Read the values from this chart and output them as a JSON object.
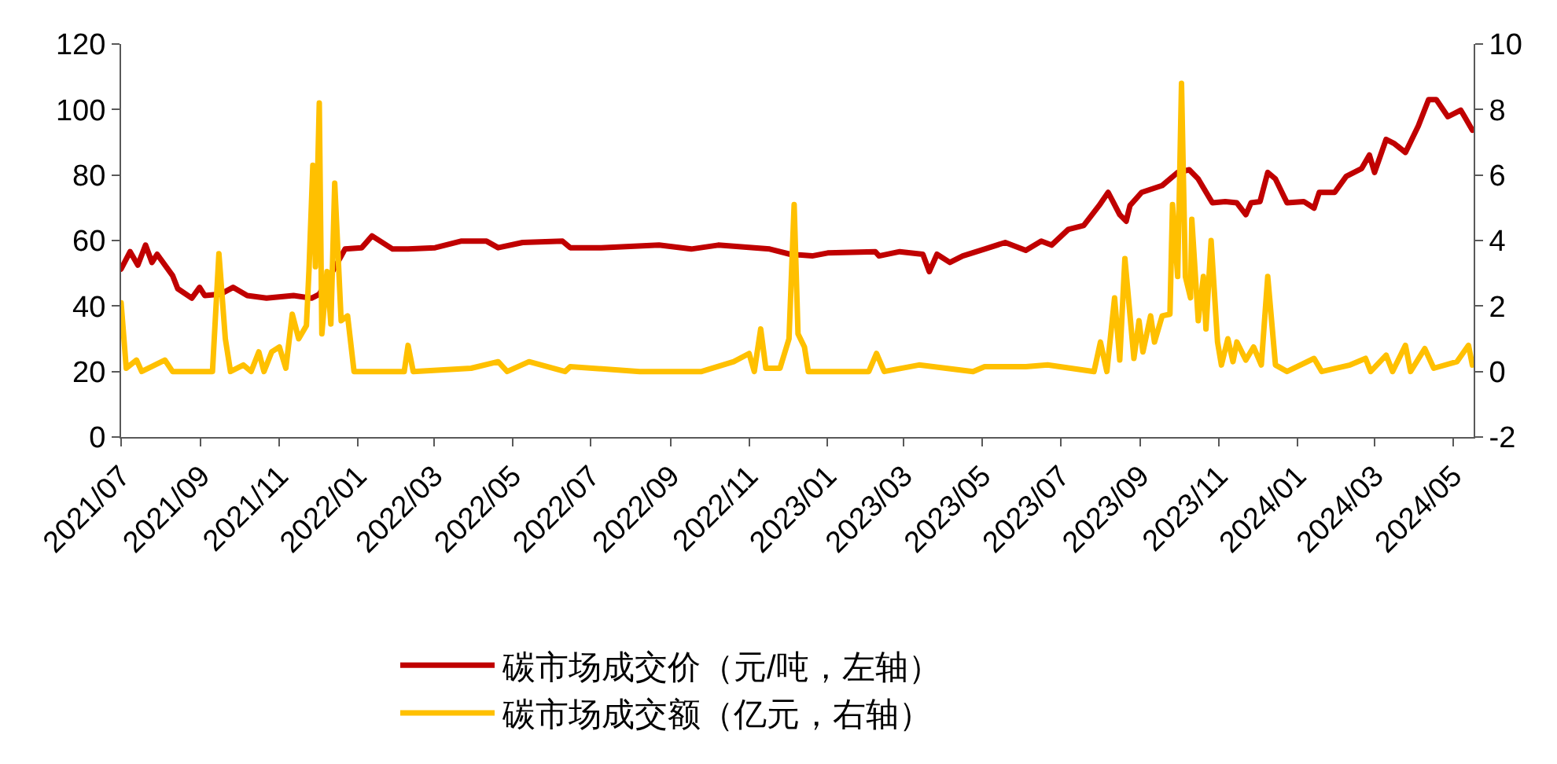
{
  "chart_data": {
    "type": "line",
    "legend": "bottom",
    "grid": false,
    "marker": "none",
    "line_style": "solid",
    "xlim": [
      "2021-07-01",
      "2024-05-17"
    ],
    "xticks": [
      {
        "value": "2021-07-01",
        "label": "2021/07"
      },
      {
        "value": "2021-09-01",
        "label": "2021/09"
      },
      {
        "value": "2021-11-01",
        "label": "2021/11"
      },
      {
        "value": "2022-01-01",
        "label": "2022/01"
      },
      {
        "value": "2022-03-01",
        "label": "2022/03"
      },
      {
        "value": "2022-05-01",
        "label": "2022/05"
      },
      {
        "value": "2022-07-01",
        "label": "2022/07"
      },
      {
        "value": "2022-09-01",
        "label": "2022/09"
      },
      {
        "value": "2022-11-01",
        "label": "2022/11"
      },
      {
        "value": "2023-01-01",
        "label": "2023/01"
      },
      {
        "value": "2023-03-01",
        "label": "2023/03"
      },
      {
        "value": "2023-05-01",
        "label": "2023/05"
      },
      {
        "value": "2023-07-01",
        "label": "2023/07"
      },
      {
        "value": "2023-09-01",
        "label": "2023/09"
      },
      {
        "value": "2023-11-01",
        "label": "2023/11"
      },
      {
        "value": "2024-01-01",
        "label": "2024/01"
      },
      {
        "value": "2024-03-01",
        "label": "2024/03"
      },
      {
        "value": "2024-05-01",
        "label": "2024/05"
      }
    ],
    "ylim": [
      0,
      120
    ],
    "yticks": [
      0,
      20,
      40,
      60,
      80,
      100,
      120
    ],
    "y2lim": [
      -2,
      10
    ],
    "y2ticks": [
      -2,
      0,
      2,
      4,
      6,
      8,
      10
    ],
    "series": [
      {
        "name": "碳市场成交价（元/吨，左轴）",
        "color": "#c00000",
        "x": [
          "2021-07-01",
          "2021-07-08",
          "2021-07-14",
          "2021-07-20",
          "2021-07-25",
          "2021-07-29",
          "2021-08-10",
          "2021-08-14",
          "2021-08-25",
          "2021-08-31",
          "2021-09-04",
          "2021-09-16",
          "2021-09-26",
          "2021-10-07",
          "2021-10-22",
          "2021-11-12",
          "2021-11-26",
          "2021-12-02",
          "2021-12-14",
          "2021-12-22",
          "2022-01-04",
          "2022-01-12",
          "2022-01-28",
          "2022-02-09",
          "2022-03-02",
          "2022-03-22",
          "2022-04-11",
          "2022-04-20",
          "2022-05-09",
          "2022-06-09",
          "2022-06-15",
          "2022-07-09",
          "2022-08-23",
          "2022-09-17",
          "2022-10-08",
          "2022-11-17",
          "2022-12-03",
          "2022-12-20",
          "2023-01-01",
          "2023-02-07",
          "2023-02-10",
          "2023-02-26",
          "2023-03-16",
          "2023-03-21",
          "2023-03-27",
          "2023-04-06",
          "2023-04-16",
          "2023-05-03",
          "2023-05-19",
          "2023-06-04",
          "2023-06-16",
          "2023-06-24",
          "2023-07-07",
          "2023-07-19",
          "2023-07-31",
          "2023-08-07",
          "2023-08-16",
          "2023-08-21",
          "2023-08-24",
          "2023-09-02",
          "2023-09-18",
          "2023-09-30",
          "2023-10-09",
          "2023-10-16",
          "2023-10-27",
          "2023-11-06",
          "2023-11-15",
          "2023-11-22",
          "2023-11-26",
          "2023-12-03",
          "2023-12-09",
          "2023-12-15",
          "2023-12-24",
          "2024-01-06",
          "2024-01-14",
          "2024-01-18",
          "2024-01-30",
          "2024-02-08",
          "2024-02-20",
          "2024-02-26",
          "2024-03-01",
          "2024-03-10",
          "2024-03-16",
          "2024-03-25",
          "2024-04-04",
          "2024-04-12",
          "2024-04-18",
          "2024-04-27",
          "2024-05-07",
          "2024-05-10",
          "2024-05-16"
        ],
        "values": [
          51.3,
          56.6,
          52.5,
          58.6,
          53.3,
          55.8,
          49.3,
          45.3,
          42.4,
          45.7,
          43.2,
          43.6,
          45.7,
          43.2,
          42.4,
          43.2,
          42.4,
          43.6,
          51.7,
          57.4,
          57.8,
          61.4,
          57.4,
          57.4,
          57.8,
          59.8,
          59.8,
          57.8,
          59.4,
          59.8,
          57.8,
          57.8,
          58.6,
          57.4,
          58.6,
          57.4,
          55.8,
          55.3,
          56.2,
          56.6,
          55.3,
          56.6,
          55.8,
          50.5,
          55.8,
          53.3,
          55.3,
          57.4,
          59.4,
          57.0,
          59.8,
          58.6,
          63.4,
          64.6,
          70.7,
          74.7,
          67.9,
          65.9,
          70.7,
          74.7,
          76.8,
          80.8,
          81.6,
          78.8,
          71.5,
          71.9,
          71.5,
          67.9,
          71.5,
          71.9,
          80.8,
          78.8,
          71.5,
          71.9,
          69.9,
          74.7,
          74.7,
          79.6,
          82.0,
          86.1,
          80.8,
          90.9,
          89.7,
          86.9,
          95.0,
          103.0,
          103.0,
          97.8,
          99.8,
          97.8,
          93.7
        ]
      },
      {
        "name": "碳市场成交额（亿元，右轴）",
        "color": "#ffc000",
        "axis": "y2",
        "x": [
          "2021-07-01",
          "2021-07-05",
          "2021-07-13",
          "2021-07-17",
          "2021-08-04",
          "2021-08-10",
          "2021-09-10",
          "2021-09-15",
          "2021-09-20",
          "2021-09-24",
          "2021-10-04",
          "2021-10-10",
          "2021-10-16",
          "2021-10-20",
          "2021-10-26",
          "2021-11-01",
          "2021-11-06",
          "2021-11-11",
          "2021-11-16",
          "2021-11-22",
          "2021-11-24",
          "2021-11-27",
          "2021-11-29",
          "2021-12-02",
          "2021-12-04",
          "2021-12-08",
          "2021-12-11",
          "2021-12-14",
          "2021-12-19",
          "2021-12-24",
          "2021-12-29",
          "2022-02-06",
          "2022-02-09",
          "2022-02-13",
          "2022-03-30",
          "2022-04-20",
          "2022-04-27",
          "2022-05-14",
          "2022-06-11",
          "2022-06-15",
          "2022-08-08",
          "2022-09-25",
          "2022-10-20",
          "2022-11-01",
          "2022-11-05",
          "2022-11-10",
          "2022-11-14",
          "2022-11-25",
          "2022-12-02",
          "2022-12-06",
          "2022-12-09",
          "2022-12-14",
          "2022-12-17",
          "2023-02-02",
          "2023-02-08",
          "2023-02-14",
          "2023-03-13",
          "2023-04-24",
          "2023-05-03",
          "2023-06-04",
          "2023-06-21",
          "2023-07-27",
          "2023-08-01",
          "2023-08-06",
          "2023-08-12",
          "2023-08-16",
          "2023-08-20",
          "2023-08-27",
          "2023-08-31",
          "2023-09-03",
          "2023-09-09",
          "2023-09-12",
          "2023-09-18",
          "2023-09-24",
          "2023-09-26",
          "2023-09-30",
          "2023-10-03",
          "2023-10-06",
          "2023-10-10",
          "2023-10-11",
          "2023-10-16",
          "2023-10-20",
          "2023-10-22",
          "2023-10-26",
          "2023-10-31",
          "2023-11-03",
          "2023-11-08",
          "2023-11-12",
          "2023-11-15",
          "2023-11-22",
          "2023-11-28",
          "2023-12-04",
          "2023-12-09",
          "2023-12-15",
          "2023-12-24",
          "2024-01-14",
          "2024-01-20",
          "2024-02-11",
          "2024-02-23",
          "2024-02-27",
          "2024-03-10",
          "2024-03-15",
          "2024-03-25",
          "2024-03-29",
          "2024-04-09",
          "2024-04-16",
          "2024-05-04",
          "2024-05-13",
          "2024-05-16"
        ],
        "values": [
          2.1,
          0.1,
          0.35,
          0,
          0.35,
          0,
          0,
          3.6,
          1.0,
          0,
          0.2,
          0,
          0.6,
          0,
          0.6,
          0.75,
          0.1,
          1.75,
          1.0,
          1.4,
          3.1,
          6.3,
          3.2,
          8.2,
          1.15,
          3.05,
          1.45,
          5.75,
          1.55,
          1.7,
          0,
          0,
          0.8,
          0,
          0.1,
          0.3,
          0,
          0.3,
          0,
          0.15,
          0,
          0,
          0.3,
          0.55,
          0,
          1.3,
          0.1,
          0.1,
          1.0,
          5.1,
          1.15,
          0.75,
          0,
          0,
          0.55,
          0,
          0.2,
          0,
          0.15,
          0.15,
          0.2,
          0,
          0.9,
          0,
          2.25,
          0.35,
          3.45,
          0.4,
          1.55,
          0.6,
          1.7,
          0.9,
          1.7,
          1.75,
          5.1,
          2.9,
          8.8,
          2.9,
          2.25,
          4.65,
          1.55,
          2.9,
          1.3,
          4.0,
          0.9,
          0.2,
          1.0,
          0.3,
          0.9,
          0.35,
          0.75,
          0.2,
          2.9,
          0.2,
          0,
          0.4,
          0,
          0.2,
          0.4,
          0,
          0.5,
          0,
          0.8,
          0,
          0.7,
          0.1,
          0.3,
          0.8,
          0.2
        ]
      }
    ]
  }
}
